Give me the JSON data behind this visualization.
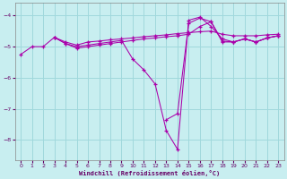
{
  "xlabel": "Windchill (Refroidissement éolien,°C)",
  "bg_color": "#c8eef0",
  "grid_color": "#a0d8dc",
  "line_color": "#aa00aa",
  "xlim_min": -0.5,
  "xlim_max": 23.5,
  "ylim_min": -8.65,
  "ylim_max": -3.6,
  "yticks": [
    -8,
    -7,
    -6,
    -5,
    -4
  ],
  "xticks": [
    0,
    1,
    2,
    3,
    4,
    5,
    6,
    7,
    8,
    9,
    10,
    11,
    12,
    13,
    14,
    15,
    16,
    17,
    18,
    19,
    20,
    21,
    22,
    23
  ],
  "series": [
    {
      "x": [
        0,
        1,
        2,
        3,
        4,
        5,
        6,
        7,
        8,
        9,
        10,
        11,
        12,
        13,
        14,
        15,
        16,
        17,
        18,
        19,
        20,
        21,
        22,
        23
      ],
      "y": [
        -5.25,
        -5.0,
        -5.0,
        -4.7,
        -4.9,
        -5.0,
        -4.95,
        -4.9,
        -4.85,
        -4.8,
        -5.4,
        -5.75,
        -6.2,
        -7.7,
        -8.3,
        -4.15,
        -4.05,
        -4.35,
        -4.75,
        -4.85,
        -4.75,
        -4.85,
        -4.72,
        -4.65
      ]
    },
    {
      "x": [
        3,
        4,
        5,
        6,
        7,
        8,
        9,
        10,
        11,
        12,
        13,
        14,
        15,
        16,
        17,
        18,
        19,
        20,
        21,
        22,
        23
      ],
      "y": [
        -4.7,
        -4.85,
        -4.95,
        -4.85,
        -4.82,
        -4.78,
        -4.75,
        -4.72,
        -4.68,
        -4.65,
        -4.62,
        -4.58,
        -4.55,
        -4.52,
        -4.5,
        -4.6,
        -4.65,
        -4.65,
        -4.65,
        -4.62,
        -4.6
      ]
    },
    {
      "x": [
        3,
        4,
        5,
        6,
        7,
        8,
        9,
        10,
        11,
        12,
        13,
        14,
        15,
        16,
        17,
        18,
        19,
        20,
        21,
        22,
        23
      ],
      "y": [
        -4.7,
        -4.9,
        -5.05,
        -5.0,
        -4.95,
        -4.9,
        -4.85,
        -4.8,
        -4.75,
        -4.72,
        -4.68,
        -4.65,
        -4.6,
        -4.35,
        -4.2,
        -4.82,
        -4.85,
        -4.75,
        -4.85,
        -4.72,
        -4.65
      ]
    },
    {
      "x": [
        13,
        14,
        15,
        16,
        17,
        18,
        19,
        20,
        21,
        22,
        23
      ],
      "y": [
        -7.35,
        -7.15,
        -4.25,
        -4.08,
        -4.2,
        -4.85,
        -4.85,
        -4.75,
        -4.85,
        -4.72,
        -4.65
      ]
    }
  ]
}
